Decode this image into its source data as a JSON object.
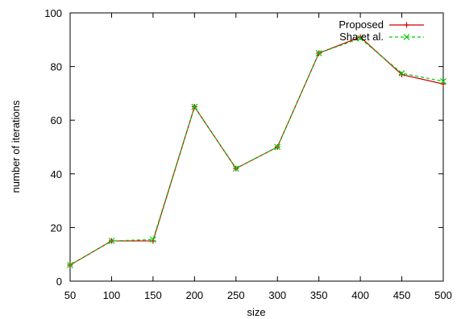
{
  "chart_data": {
    "type": "line",
    "title": "",
    "xlabel": "size",
    "ylabel": "number of iterations",
    "xlim": [
      50,
      500
    ],
    "ylim": [
      0,
      100
    ],
    "x": [
      50,
      100,
      150,
      200,
      250,
      300,
      350,
      400,
      450,
      500
    ],
    "xticks": [
      "50",
      "100",
      "150",
      "200",
      "250",
      "300",
      "350",
      "400",
      "450",
      "500"
    ],
    "yticks": [
      "0",
      "20",
      "40",
      "60",
      "80",
      "100"
    ],
    "yticks_values": [
      0,
      20,
      40,
      60,
      80,
      100
    ],
    "grid": false,
    "legend_position": "top-right",
    "series": [
      {
        "name": "Proposed",
        "color": "#cc0000",
        "marker": "plus",
        "dash": "solid",
        "values": [
          6,
          15,
          15,
          65,
          42,
          50,
          85,
          91,
          77,
          73.5
        ]
      },
      {
        "name": "Sha et al.",
        "color": "#00cc00",
        "marker": "x",
        "dash": "dashed",
        "values": [
          6,
          15,
          15.5,
          65,
          42,
          50,
          85,
          90.5,
          77.5,
          74.5
        ]
      }
    ]
  }
}
